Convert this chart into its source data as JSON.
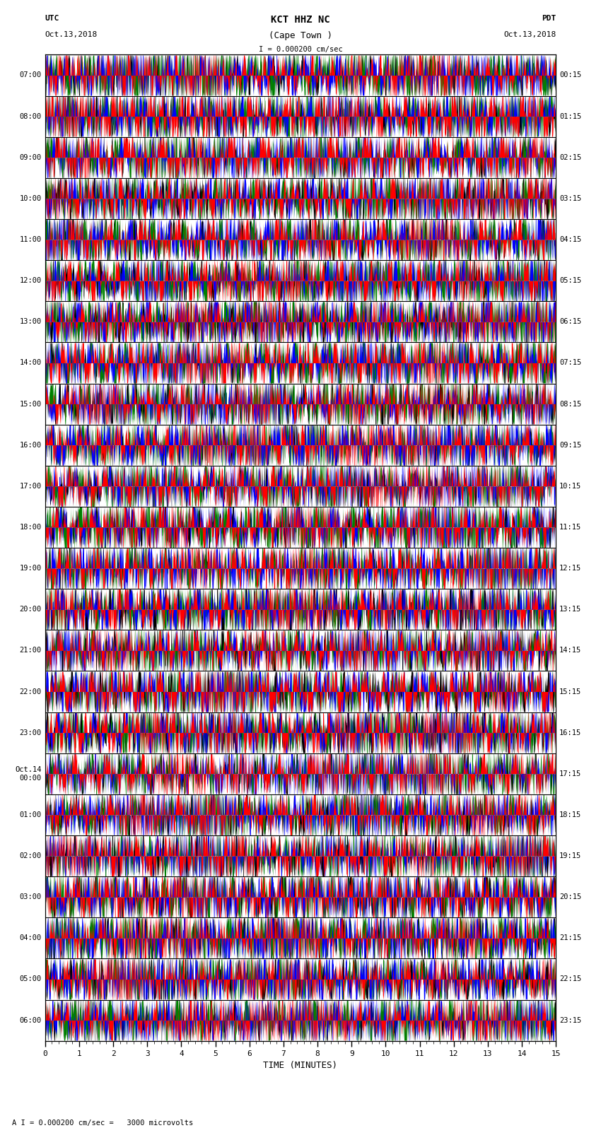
{
  "title_line1": "KCT HHZ NC",
  "title_line2": "(Cape Town )",
  "scale_text": "I = 0.000200 cm/sec",
  "footer_text": "A I = 0.000200 cm/sec =   3000 microvolts",
  "utc_label": "UTC",
  "utc_date": "Oct.13,2018",
  "pdt_label": "PDT",
  "pdt_date": "Oct.13,2018",
  "xlabel": "TIME (MINUTES)",
  "left_times": [
    "07:00",
    "08:00",
    "09:00",
    "10:00",
    "11:00",
    "12:00",
    "13:00",
    "14:00",
    "15:00",
    "16:00",
    "17:00",
    "18:00",
    "19:00",
    "20:00",
    "21:00",
    "22:00",
    "23:00",
    "Oct.14\n00:00",
    "01:00",
    "02:00",
    "03:00",
    "04:00",
    "05:00",
    "06:00"
  ],
  "right_times": [
    "00:15",
    "01:15",
    "02:15",
    "03:15",
    "04:15",
    "05:15",
    "06:15",
    "07:15",
    "08:15",
    "09:15",
    "10:15",
    "11:15",
    "12:15",
    "13:15",
    "14:15",
    "15:15",
    "16:15",
    "17:15",
    "18:15",
    "19:15",
    "20:15",
    "21:15",
    "22:15",
    "23:15"
  ],
  "n_rows": 24,
  "n_minutes": 15,
  "bg_color": "#ffffff",
  "colors": [
    "#ff0000",
    "#0000ff",
    "#008000",
    "#000000"
  ],
  "seed": 42
}
